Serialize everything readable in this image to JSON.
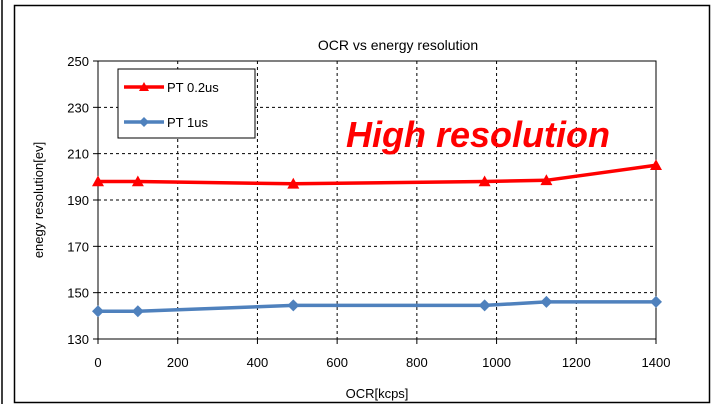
{
  "chart_data": {
    "type": "line",
    "title": "OCR vs energy resolution",
    "xlabel": "OCR[kcps]",
    "ylabel": "enegy resolution[ev]",
    "xlim": [
      0,
      1400
    ],
    "ylim": [
      130,
      250
    ],
    "x_ticks": [
      "0",
      "200",
      "400",
      "600",
      "800",
      "1000",
      "1200",
      "1400"
    ],
    "y_ticks": [
      "130",
      "150",
      "170",
      "190",
      "210",
      "230",
      "250"
    ],
    "grid": true,
    "legend_position": "top-left",
    "annotation": "High resolution",
    "annotation_color": "#ff0000",
    "series": [
      {
        "name": "PT 0.2us",
        "color": "#ff0000",
        "marker": "triangle",
        "x": [
          0,
          100,
          490,
          970,
          1125,
          1400
        ],
        "y": [
          198,
          198,
          197,
          198,
          198.5,
          205
        ]
      },
      {
        "name": "PT 1us",
        "color": "#4f81bd",
        "marker": "diamond",
        "x": [
          0,
          100,
          490,
          970,
          1125,
          1400
        ],
        "y": [
          142,
          142,
          144.5,
          144.5,
          146,
          146
        ]
      }
    ]
  }
}
